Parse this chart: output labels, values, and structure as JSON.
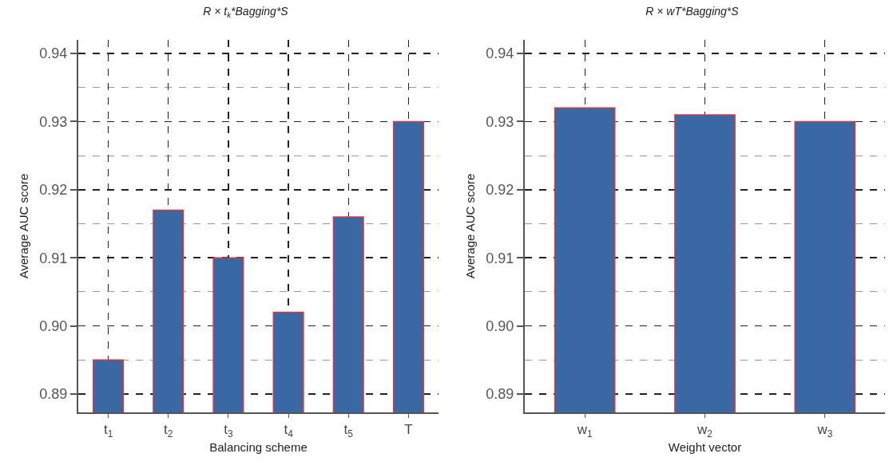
{
  "chart_data": [
    {
      "type": "bar",
      "title": "R × t$_{k}$*Bagging*S",
      "xlabel": "Balancing scheme",
      "ylabel": "Average AUC score",
      "categories": [
        "t$_{1}$",
        "t$_{2}$",
        "t$_{3}$",
        "t$_{4}$",
        "t$_{5}$",
        "T"
      ],
      "series": [
        {
          "color": "#3a68a4",
          "values": [
            0.895,
            0.917,
            0.91,
            0.902,
            0.916,
            0.93
          ]
        }
      ],
      "ylim": [
        0.8873,
        0.942
      ],
      "yticks": [
        0.89,
        {
          "value": 0.9,
          "label": "0.90"
        },
        0.91,
        0.92,
        0.93,
        0.94
      ],
      "grid": true
    },
    {
      "type": "bar",
      "title": "R × wT*Bagging*S",
      "xlabel": "Weight vector",
      "ylabel": "Average AUC score",
      "categories": [
        "w$_{1}$",
        "w$_{2}$",
        "w$_{3}$"
      ],
      "series": [
        {
          "color": "#3a68a4",
          "values": [
            0.932,
            0.931,
            0.93
          ]
        }
      ],
      "ylim": [
        0.8873,
        0.942
      ],
      "yticks": [
        0.89,
        {
          "value": 0.9,
          "label": "0.90"
        },
        0.91,
        0.92,
        0.93,
        0.94
      ],
      "grid": true
    }
  ]
}
